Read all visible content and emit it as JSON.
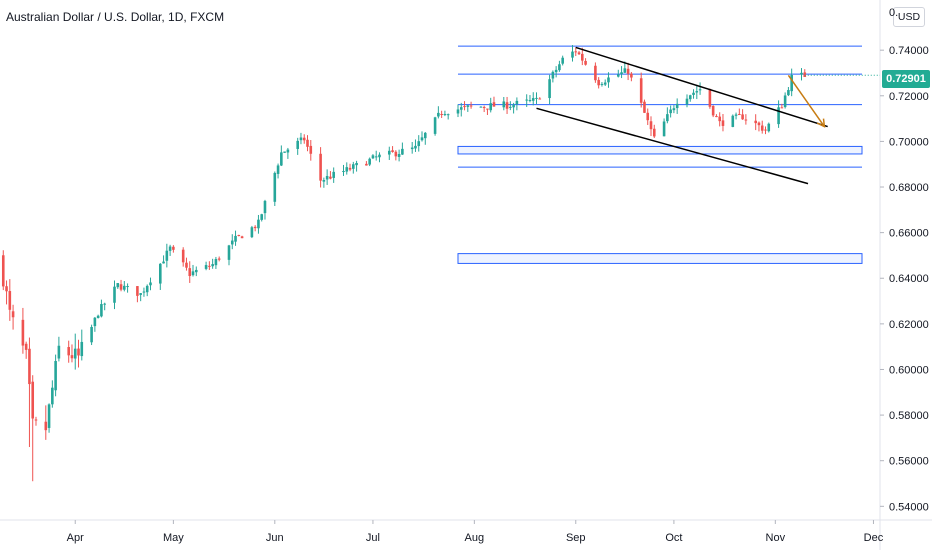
{
  "header": {
    "title": "Australian Dollar / U.S. Dollar, 1D, FXCM"
  },
  "currency_badge": "USD",
  "last_price": "0.72901",
  "colors": {
    "up": "#26a69a",
    "down": "#ef5350",
    "level_line": "#2962ff",
    "trend_line": "#000000",
    "forecast_arrow": "#c77c13",
    "price_tag": "#22ab94"
  },
  "chart_data": {
    "type": "candlestick",
    "instrument": "Australian Dollar / U.S. Dollar",
    "timeframe": "1D",
    "source": "FXCM",
    "y_axis": {
      "ticks": [
        "0.54000",
        "0.56000",
        "0.58000",
        "0.60000",
        "0.62000",
        "0.64000",
        "0.66000",
        "0.68000",
        "0.70000",
        "0.72000",
        "0.74000"
      ],
      "range": [
        0.534,
        0.762
      ],
      "side": "right"
    },
    "x_axis": {
      "ticks": [
        "Apr",
        "May",
        "Jun",
        "Jul",
        "Aug",
        "Sep",
        "Oct",
        "Nov",
        "Dec"
      ],
      "range": [
        "2020-03-09",
        "2020-12-03"
      ]
    },
    "last_price": 0.72901,
    "horizontal_levels": [
      0.7418,
      0.7295,
      0.7161
    ],
    "zones": [
      [
        0.6945,
        0.6978
      ],
      [
        0.6465,
        0.6508
      ]
    ],
    "single_lines": [
      0.6887
    ],
    "trend_lines": [
      {
        "from": {
          "date": "2020-09-01",
          "price": 0.7412
        },
        "to": {
          "date": "2020-11-17",
          "price": 0.7065
        }
      },
      {
        "from": {
          "date": "2020-08-20",
          "price": 0.7145
        },
        "to": {
          "date": "2020-11-11",
          "price": 0.6815
        }
      }
    ],
    "forecast_arrow": {
      "from": {
        "date": "2020-11-05",
        "price": 0.729
      },
      "to": {
        "date": "2020-11-16",
        "price": 0.7065
      }
    },
    "anchors": [
      [
        "2020-03-09",
        0.649
      ],
      [
        "2020-03-12",
        0.624
      ],
      [
        "2020-03-17",
        0.605
      ],
      [
        "2020-03-19",
        0.575
      ],
      [
        "2020-03-23",
        0.574
      ],
      [
        "2020-03-27",
        0.609
      ],
      [
        "2020-04-02",
        0.605
      ],
      [
        "2020-04-08",
        0.625
      ],
      [
        "2020-04-14",
        0.637
      ],
      [
        "2020-04-21",
        0.633
      ],
      [
        "2020-04-30",
        0.653
      ],
      [
        "2020-05-06",
        0.642
      ],
      [
        "2020-05-13",
        0.646
      ],
      [
        "2020-05-20",
        0.657
      ],
      [
        "2020-05-27",
        0.664
      ],
      [
        "2020-06-03",
        0.695
      ],
      [
        "2020-06-10",
        0.701
      ],
      [
        "2020-06-15",
        0.683
      ],
      [
        "2020-06-24",
        0.688
      ],
      [
        "2020-07-02",
        0.693
      ],
      [
        "2020-07-14",
        0.697
      ],
      [
        "2020-07-22",
        0.713
      ],
      [
        "2020-07-31",
        0.715
      ],
      [
        "2020-08-12",
        0.716
      ],
      [
        "2020-08-20",
        0.718
      ],
      [
        "2020-08-28",
        0.736
      ],
      [
        "2020-09-01",
        0.74
      ],
      [
        "2020-09-08",
        0.726
      ],
      [
        "2020-09-17",
        0.731
      ],
      [
        "2020-09-25",
        0.701
      ],
      [
        "2020-10-02",
        0.718
      ],
      [
        "2020-10-09",
        0.723
      ],
      [
        "2020-10-15",
        0.708
      ],
      [
        "2020-10-22",
        0.711
      ],
      [
        "2020-10-29",
        0.705
      ],
      [
        "2020-11-03",
        0.716
      ],
      [
        "2020-11-06",
        0.728
      ],
      [
        "2020-11-10",
        0.729
      ]
    ]
  }
}
